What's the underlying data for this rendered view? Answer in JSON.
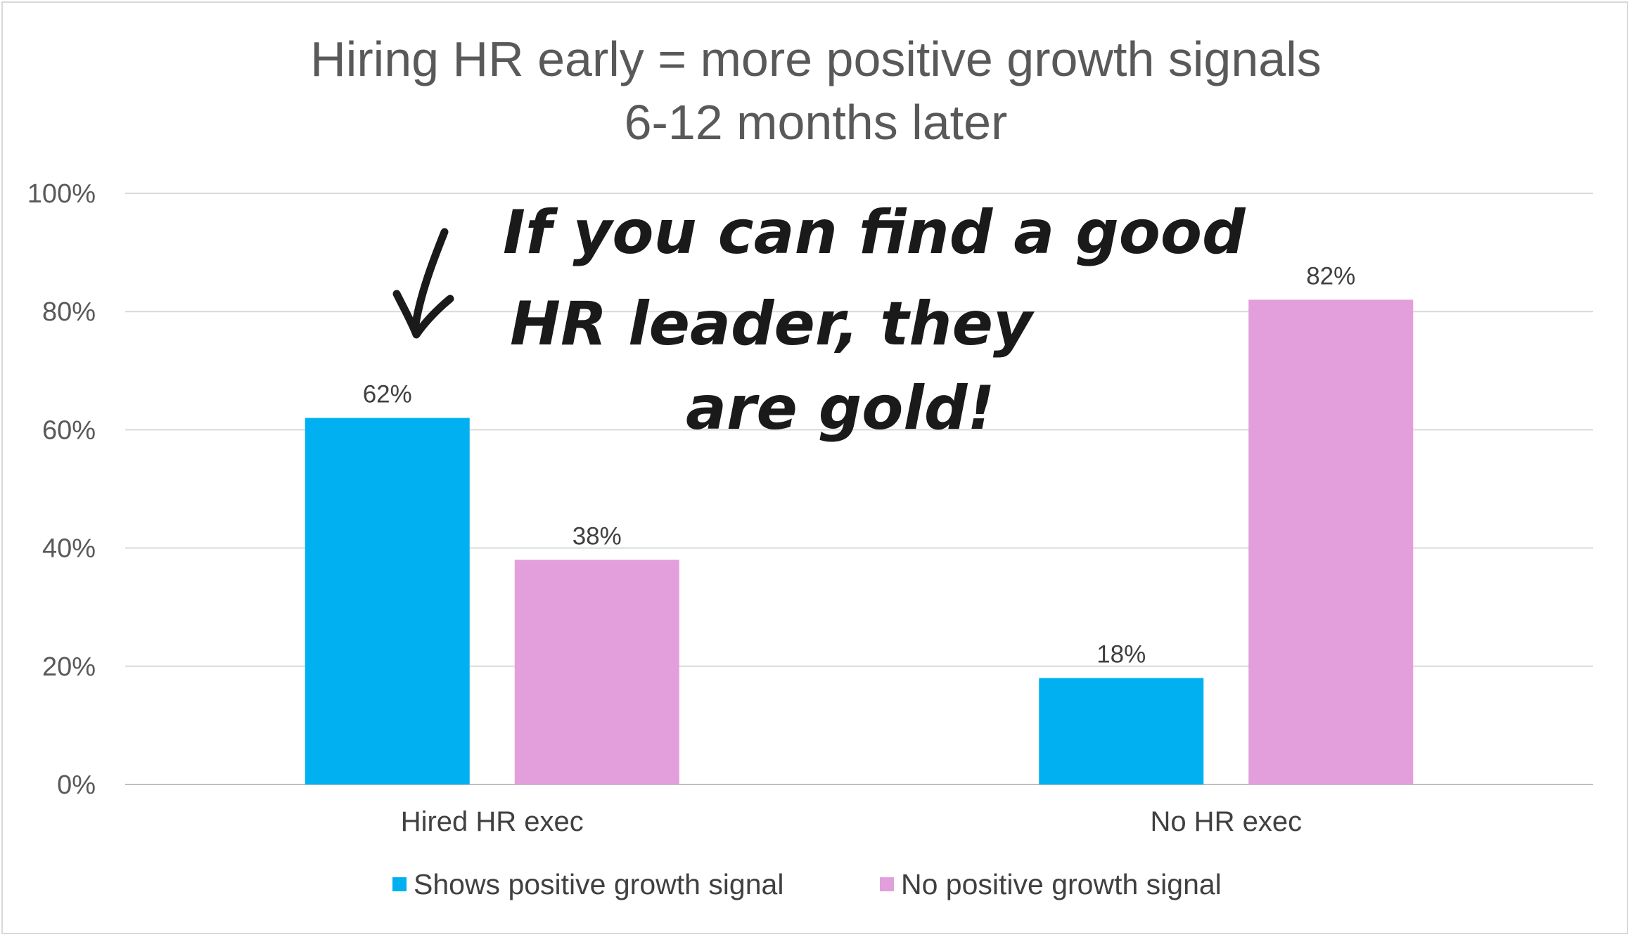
{
  "chart_data": {
    "type": "bar",
    "title": "Hiring HR early =  more positive growth signals",
    "subtitle": "6-12 months later",
    "categories": [
      "Hired HR exec",
      "No HR exec"
    ],
    "series": [
      {
        "name": "Shows positive growth signal",
        "values": [
          62,
          18
        ],
        "color": "#00b0f0"
      },
      {
        "name": "No positive growth signal",
        "values": [
          38,
          82
        ],
        "color": "#e29fdc"
      }
    ],
    "ylim": [
      0,
      100
    ],
    "yticks": [
      0,
      20,
      40,
      60,
      80,
      100
    ],
    "ytick_suffix": "%",
    "grid": true,
    "legend_position": "bottom",
    "annotation": {
      "lines": [
        "If you can find a good",
        "HR leader, they",
        "are gold!"
      ],
      "arrow": "down-arrow-icon"
    }
  }
}
